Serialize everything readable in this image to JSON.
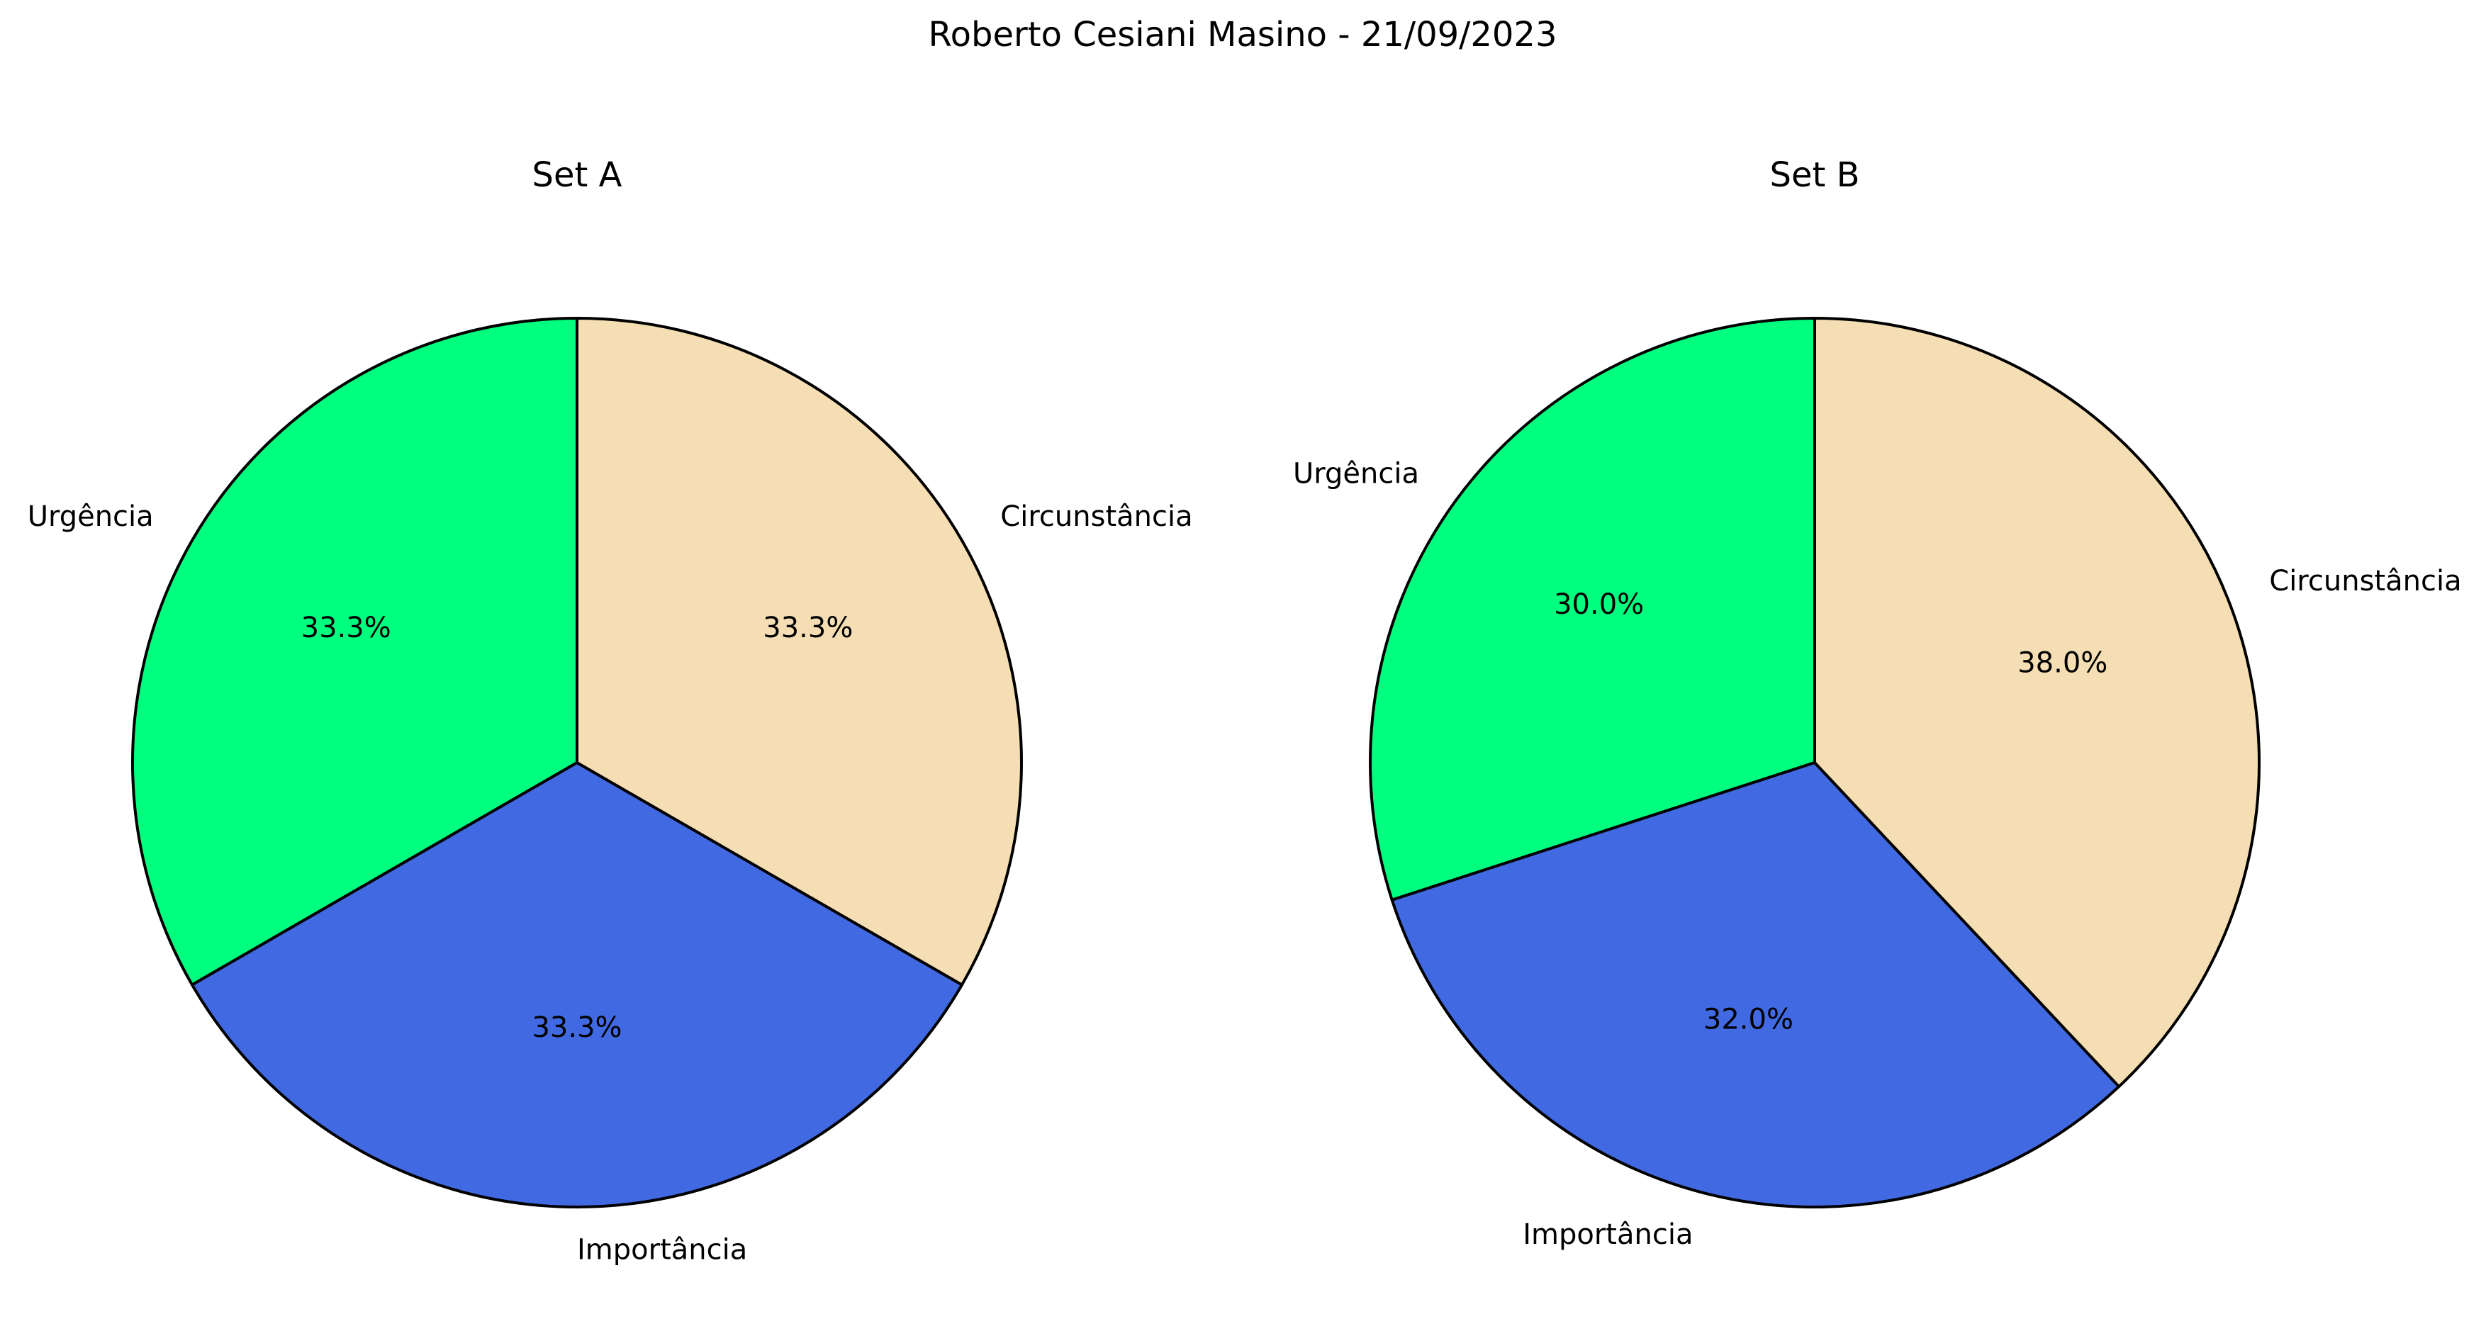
{
  "figure": {
    "title": "Roberto Cesiani Masino - 21/09/2023"
  },
  "chart_data": [
    {
      "type": "pie",
      "title": "Set A",
      "labels": [
        "Urgência",
        "Importância",
        "Circunstância"
      ],
      "values": [
        33.3,
        33.3,
        33.3
      ],
      "value_labels": [
        "33.3%",
        "33.3%",
        "33.3%"
      ],
      "colors": [
        "#00ff7f",
        "#4169e1",
        "#f5deb3"
      ],
      "start_angle_deg": 90,
      "direction": "counterclockwise",
      "edge_color": "#000000"
    },
    {
      "type": "pie",
      "title": "Set B",
      "labels": [
        "Urgência",
        "Importância",
        "Circunstância"
      ],
      "values": [
        30.0,
        32.0,
        38.0
      ],
      "value_labels": [
        "30.0%",
        "32.0%",
        "38.0%"
      ],
      "colors": [
        "#00ff7f",
        "#4169e1",
        "#f5deb3"
      ],
      "start_angle_deg": 90,
      "direction": "counterclockwise",
      "edge_color": "#000000"
    }
  ]
}
